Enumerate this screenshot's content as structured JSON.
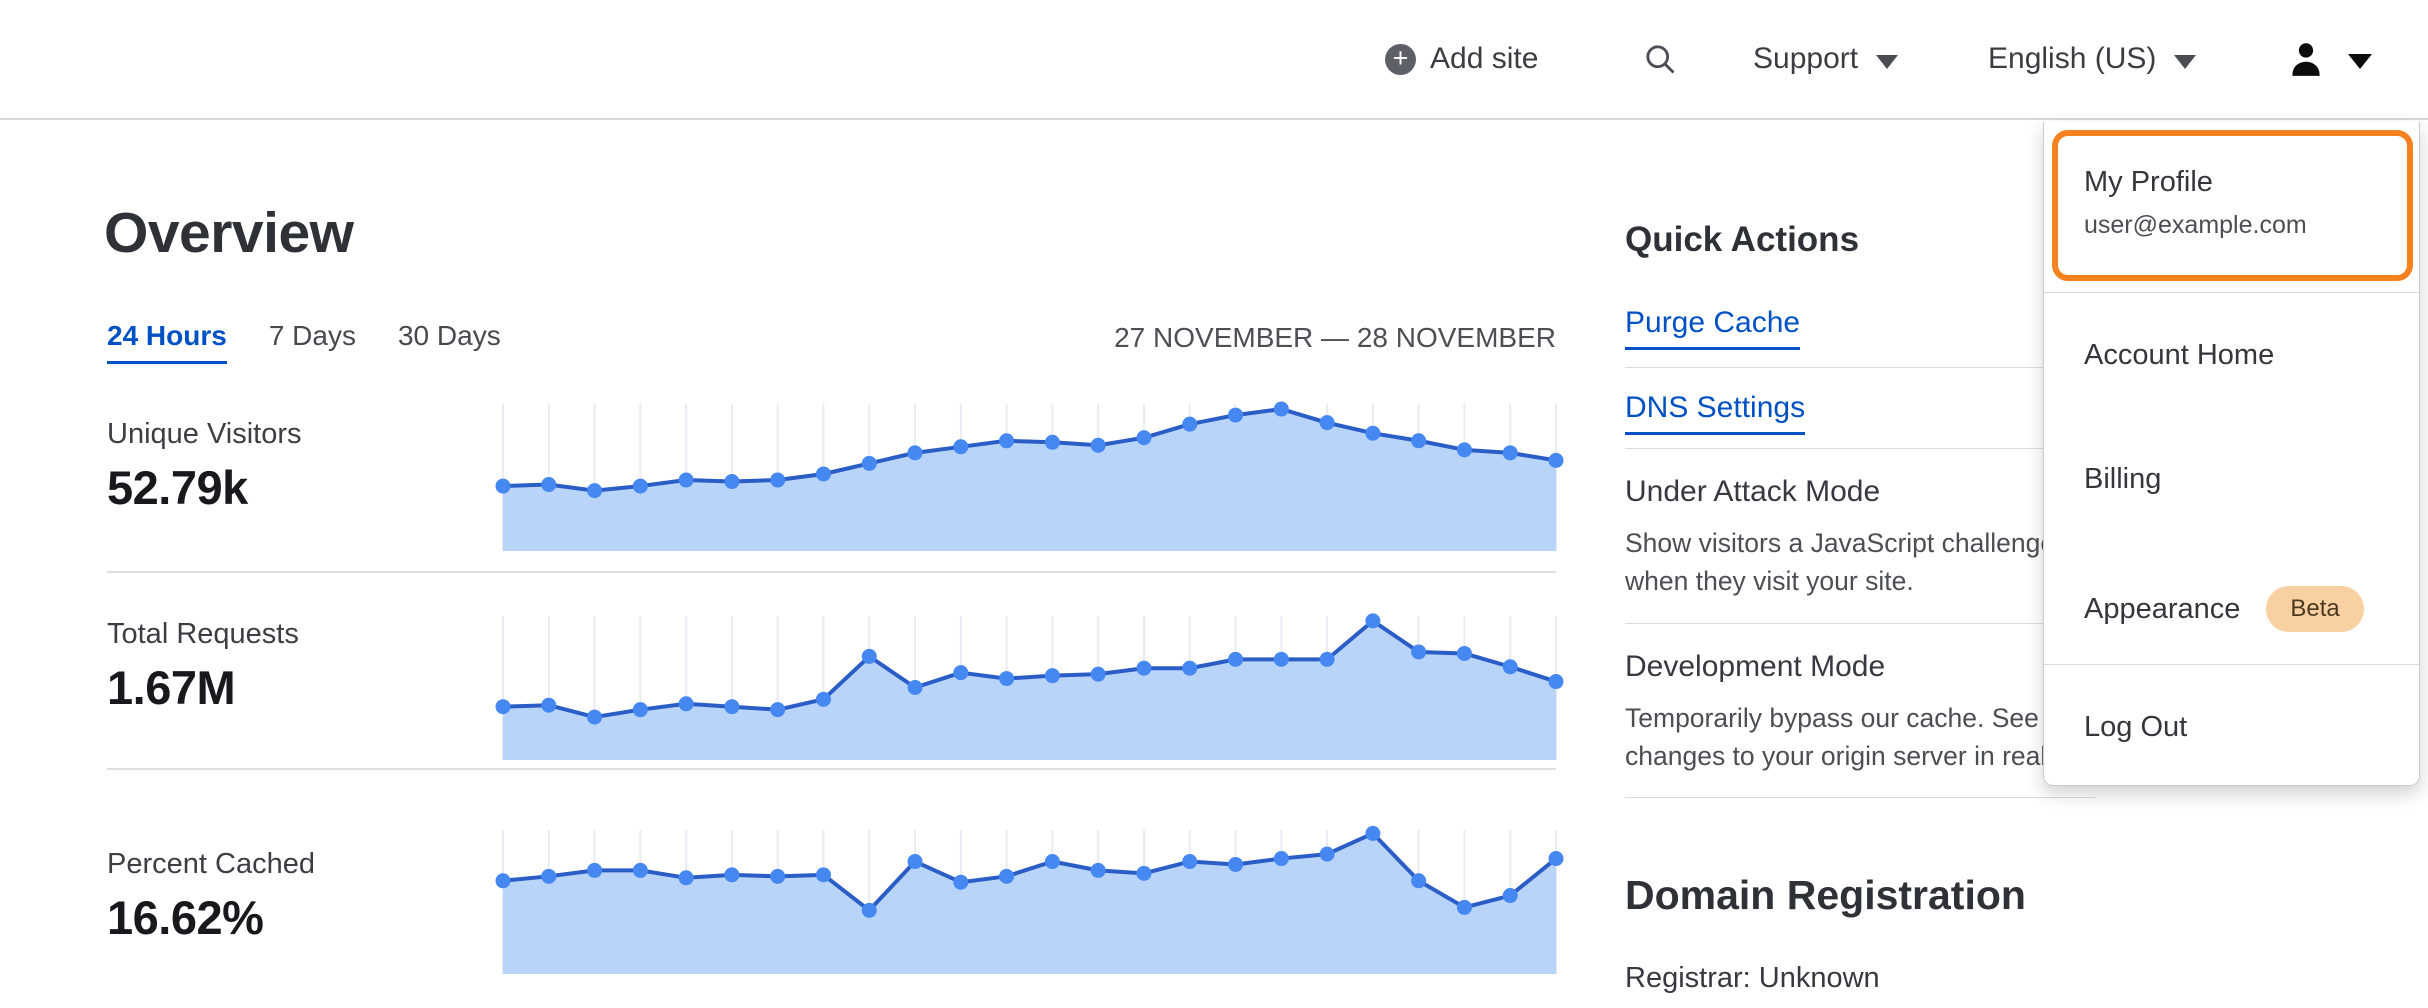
{
  "colors": {
    "accent_blue": "#0051c3",
    "highlight_orange": "#f6821f",
    "chart_line": "#2b5dc7",
    "chart_dot": "#4688f1",
    "chart_fill": "#b9d4f9",
    "chart_grid": "#e8ecf2",
    "beta_badge_bg": "#f9d0a2",
    "beta_badge_text": "#4d3920"
  },
  "header": {
    "add_site_label": "Add site",
    "support_label": "Support",
    "language_label": "English (US)"
  },
  "overview": {
    "title": "Overview",
    "tabs": [
      {
        "label": "24 Hours",
        "active": true
      },
      {
        "label": "7 Days",
        "active": false
      },
      {
        "label": "30 Days",
        "active": false
      }
    ],
    "date_range": "27 NOVEMBER — 28 NOVEMBER"
  },
  "chart_data": [
    {
      "type": "area",
      "title": "Unique Visitors",
      "value": "52.79k",
      "x_axis": "24 evenly spaced time points, 27 November — 28 November (24 hours)",
      "y_axis": "unlabeled relative scale; values are % of plot height",
      "grid": "faint vertical gridline at each point",
      "legend": "none",
      "values_pct": [
        43,
        44,
        40,
        43,
        47,
        46,
        47,
        51,
        58,
        65,
        69,
        73,
        72,
        70,
        75,
        84,
        90,
        94,
        85,
        78,
        73,
        67,
        65,
        60
      ]
    },
    {
      "type": "area",
      "title": "Total Requests",
      "value": "1.67M",
      "x_axis": "24 evenly spaced time points, 27 November — 28 November (24 hours)",
      "y_axis": "unlabeled relative scale; values are % of plot height",
      "grid": "faint vertical gridline at each point",
      "legend": "none",
      "values_pct": [
        36,
        37,
        29,
        34,
        38,
        36,
        34,
        41,
        70,
        49,
        59,
        55,
        57,
        58,
        62,
        62,
        68,
        68,
        68,
        94,
        73,
        72,
        63,
        53
      ]
    },
    {
      "type": "area",
      "title": "Percent Cached",
      "value": "16.62%",
      "x_axis": "24 evenly spaced time points, 27 November — 28 November (24 hours)",
      "y_axis": "unlabeled relative scale; values are % of plot height",
      "grid": "faint vertical gridline at each point",
      "legend": "none",
      "values_pct": [
        63,
        66,
        70,
        70,
        65,
        67,
        66,
        67,
        43,
        76,
        62,
        66,
        76,
        70,
        68,
        76,
        74,
        78,
        81,
        95,
        63,
        45,
        53,
        78
      ]
    }
  ],
  "quick_actions": {
    "heading": "Quick Actions",
    "links": [
      {
        "label": "Purge Cache"
      },
      {
        "label": "DNS Settings"
      }
    ],
    "toggles": [
      {
        "title": "Under Attack Mode",
        "description": "Show visitors a JavaScript challenge\nwhen they visit your site."
      },
      {
        "title": "Development Mode",
        "description": "Temporarily bypass our cache. See\nchanges to your origin server in realtime."
      }
    ]
  },
  "domain_registration": {
    "heading": "Domain Registration",
    "registrar": "Registrar: Unknown"
  },
  "profile_menu": {
    "my_profile_label": "My Profile",
    "email": "user@example.com",
    "account_home_label": "Account Home",
    "billing_label": "Billing",
    "appearance_label": "Appearance",
    "beta_badge": "Beta",
    "log_out_label": "Log Out"
  }
}
